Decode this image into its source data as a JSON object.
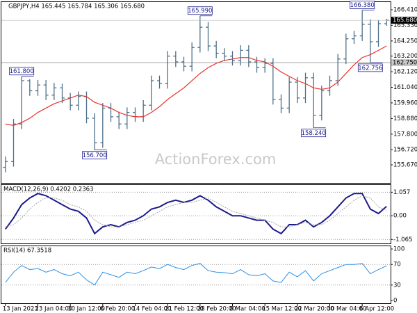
{
  "chart_data": [
    {
      "type": "ohlc",
      "title": "GBPJPY,H4  165.445 165.784 165.306 165.680",
      "watermark": "ActionForex.com",
      "color": "#4d6f88",
      "open": [
        155.5,
        155.9,
        158.5,
        161.5,
        160.8,
        161.2,
        160.5,
        161.0,
        160.3,
        159.8,
        160.4,
        158.9,
        157.2,
        159.6,
        159.0,
        158.5,
        159.3,
        159.0,
        159.8,
        161.5,
        161.3,
        163.2,
        162.8,
        162.5,
        163.8,
        165.2,
        163.9,
        163.4,
        163.2,
        162.9,
        163.6,
        162.8,
        162.4,
        162.7,
        160.2,
        159.6,
        161.4,
        160.3,
        161.7,
        159.1,
        160.8,
        161.5,
        163.0,
        164.4,
        164.6,
        165.4,
        164.2,
        165.445
      ],
      "high": [
        156.25,
        158.85,
        161.8,
        161.6,
        161.55,
        161.55,
        161.35,
        161.3,
        160.65,
        160.75,
        160.75,
        159.25,
        159.95,
        159.95,
        159.35,
        159.65,
        159.65,
        160.15,
        161.85,
        161.85,
        163.55,
        163.55,
        163.15,
        164.15,
        165.99,
        165.55,
        164.25,
        163.75,
        163.55,
        163.95,
        163.95,
        163.15,
        163.05,
        163.05,
        160.55,
        161.75,
        161.75,
        162.05,
        162.05,
        161.15,
        161.85,
        163.35,
        164.75,
        164.95,
        166.38,
        165.75,
        165.7,
        165.784
      ],
      "low": [
        155.15,
        155.55,
        158.15,
        160.45,
        160.45,
        160.15,
        160.15,
        159.95,
        159.45,
        159.45,
        158.55,
        156.7,
        156.85,
        158.65,
        158.15,
        158.15,
        158.65,
        158.65,
        159.45,
        160.95,
        160.95,
        162.45,
        162.15,
        162.15,
        163.45,
        163.55,
        163.05,
        162.85,
        162.55,
        162.55,
        162.45,
        162.05,
        162.05,
        159.85,
        159.25,
        159.25,
        159.95,
        159.95,
        158.24,
        158.75,
        160.45,
        161.15,
        162.65,
        164.05,
        164.25,
        162.756,
        163.85,
        165.306
      ],
      "close": [
        155.9,
        158.5,
        161.5,
        160.8,
        161.2,
        160.5,
        161.0,
        160.3,
        159.8,
        160.4,
        158.9,
        157.2,
        159.6,
        159.0,
        158.5,
        159.3,
        159.0,
        159.8,
        161.5,
        161.3,
        163.2,
        162.8,
        162.5,
        163.8,
        165.2,
        163.9,
        163.4,
        163.2,
        162.9,
        163.6,
        162.8,
        162.4,
        162.7,
        160.2,
        159.6,
        161.4,
        160.3,
        161.7,
        159.1,
        160.8,
        161.5,
        163.0,
        164.4,
        164.6,
        165.4,
        164.2,
        165.445,
        165.68
      ],
      "overlay": {
        "color": "#e8322d",
        "values": [
          158.5,
          158.4,
          158.6,
          158.9,
          159.3,
          159.6,
          159.9,
          160.1,
          160.3,
          160.5,
          160.4,
          160.0,
          159.8,
          159.6,
          159.3,
          159.1,
          159.0,
          159.0,
          159.3,
          159.7,
          160.2,
          160.6,
          161.0,
          161.5,
          162.0,
          162.4,
          162.7,
          162.9,
          163.0,
          163.1,
          163.1,
          162.9,
          162.8,
          162.5,
          162.1,
          161.8,
          161.5,
          161.3,
          161.0,
          160.9,
          161.0,
          161.4,
          162.0,
          162.6,
          163.1,
          163.3,
          163.6,
          163.9
        ]
      },
      "annotations": [
        {
          "value": 165.99,
          "label": "165.990"
        },
        {
          "value": 166.38,
          "label": "166.380"
        },
        {
          "value": 161.8,
          "label": "161.800"
        },
        {
          "value": 156.7,
          "label": "156.700"
        },
        {
          "value": 158.24,
          "label": "158.240"
        },
        {
          "value": 162.756,
          "label": "162.756"
        }
      ],
      "hline": {
        "value": 162.75,
        "label": "162.750"
      },
      "last_price": {
        "value": 165.68,
        "label": "165.680"
      },
      "ylim": [
        154.42,
        166.94
      ],
      "yticks": [
        {
          "value": 166.41,
          "label": "166.410"
        },
        {
          "value": 165.33,
          "label": "165.330"
        },
        {
          "value": 164.25,
          "label": "164.250"
        },
        {
          "value": 163.2,
          "label": "163.200"
        },
        {
          "value": 162.12,
          "label": "162.120"
        },
        {
          "value": 161.04,
          "label": "161.040"
        },
        {
          "value": 159.96,
          "label": "159.960"
        },
        {
          "value": 158.88,
          "label": "158.880"
        },
        {
          "value": 157.8,
          "label": "157.800"
        },
        {
          "value": 156.72,
          "label": "156.720"
        },
        {
          "value": 155.67,
          "label": "155.670"
        }
      ]
    },
    {
      "type": "line",
      "title": "MACD(12,26,9) 0.4202 0.2363",
      "series": [
        {
          "color": "#1a1a8c",
          "style": "solid",
          "values": [
            -0.6,
            -0.1,
            0.5,
            0.8,
            1.0,
            0.9,
            0.7,
            0.5,
            0.3,
            0.2,
            -0.1,
            -0.8,
            -0.5,
            -0.4,
            -0.5,
            -0.3,
            -0.2,
            0.0,
            0.3,
            0.4,
            0.6,
            0.7,
            0.6,
            0.7,
            0.9,
            0.7,
            0.4,
            0.2,
            0.0,
            0.0,
            -0.1,
            -0.2,
            -0.2,
            -0.6,
            -0.8,
            -0.4,
            -0.4,
            -0.2,
            -0.5,
            -0.3,
            0.0,
            0.4,
            0.8,
            1.0,
            1.0,
            0.3,
            0.1,
            0.4202
          ]
        },
        {
          "color": "#a8a8a8",
          "style": "dotted",
          "values": [
            -0.5,
            -0.4,
            -0.1,
            0.3,
            0.6,
            0.8,
            0.8,
            0.7,
            0.5,
            0.4,
            0.2,
            -0.2,
            -0.4,
            -0.5,
            -0.5,
            -0.4,
            -0.3,
            -0.2,
            0.0,
            0.2,
            0.4,
            0.5,
            0.6,
            0.6,
            0.7,
            0.8,
            0.6,
            0.4,
            0.2,
            0.1,
            0.0,
            -0.1,
            -0.2,
            -0.3,
            -0.5,
            -0.5,
            -0.4,
            -0.3,
            -0.4,
            -0.4,
            -0.2,
            0.1,
            0.4,
            0.7,
            0.9,
            0.8,
            0.4,
            0.2363
          ]
        }
      ],
      "ylim": [
        -1.149,
        1.225
      ],
      "yticks": [
        1.057,
        {
          "value": 0,
          "label": "0.00"
        },
        -1.065
      ]
    },
    {
      "type": "line",
      "title": "RSI(14) 67.3518",
      "categories": [
        "13 Jan 2023",
        null,
        null,
        null,
        "23 Jan 04:00",
        null,
        null,
        null,
        "30 Jan 12:00",
        null,
        null,
        null,
        "6 Feb 20:00",
        null,
        null,
        null,
        "14 Feb 04:00",
        null,
        null,
        null,
        "21 Feb 12:00",
        null,
        null,
        null,
        "28 Feb 20:00",
        null,
        null,
        null,
        "8 Mar 04:00",
        null,
        null,
        null,
        "15 Mar 12:00",
        null,
        null,
        null,
        "22 Mar 20:00",
        null,
        null,
        null,
        "30 Mar 04:00",
        null,
        null,
        null,
        "6 Apr 12:00",
        null,
        null,
        null
      ],
      "series": [
        {
          "color": "#2a8fe8",
          "style": "solid",
          "values": [
            35,
            55,
            68,
            60,
            62,
            55,
            60,
            52,
            48,
            55,
            40,
            30,
            55,
            50,
            45,
            55,
            52,
            58,
            65,
            62,
            70,
            64,
            60,
            68,
            72,
            58,
            55,
            54,
            52,
            60,
            50,
            48,
            52,
            38,
            35,
            55,
            46,
            58,
            38,
            52,
            58,
            64,
            70,
            70,
            72,
            52,
            60,
            67.3518
          ]
        }
      ],
      "ylim": [
        0,
        100
      ],
      "yticks": [
        100,
        70,
        30,
        0
      ]
    }
  ]
}
